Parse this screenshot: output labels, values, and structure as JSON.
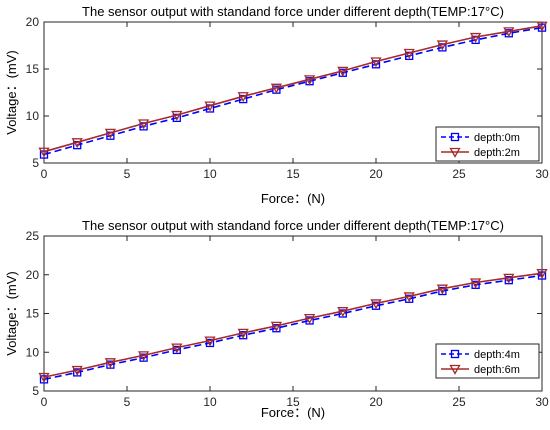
{
  "chart_data": [
    {
      "type": "line",
      "title": "The sensor output with standand force under different depth(TEMP:17°C)",
      "xlabel": "Force：(N)",
      "ylabel": "Voltage：(mV)",
      "xlim": [
        0,
        30
      ],
      "ylim": [
        5,
        20
      ],
      "xticks": [
        0,
        5,
        10,
        15,
        20,
        25,
        30
      ],
      "yticks": [
        5,
        10,
        15,
        20
      ],
      "grid": false,
      "legend_position": "bottom-right",
      "x": [
        0,
        2,
        4,
        6,
        8,
        10,
        12,
        14,
        16,
        18,
        20,
        22,
        24,
        26,
        28,
        30
      ],
      "series": [
        {
          "name": "depth:0m",
          "color": "#0000ff",
          "line_style": "dashed",
          "marker": "square",
          "values": [
            5.9,
            6.9,
            7.9,
            8.9,
            9.8,
            10.8,
            11.8,
            12.8,
            13.7,
            14.6,
            15.5,
            16.4,
            17.3,
            18.1,
            18.8,
            19.4
          ]
        },
        {
          "name": "depth:2m",
          "color": "#a52a2a",
          "line_style": "solid",
          "marker": "triangle-down",
          "values": [
            6.2,
            7.2,
            8.2,
            9.2,
            10.1,
            11.1,
            12.1,
            13.0,
            13.9,
            14.8,
            15.8,
            16.7,
            17.6,
            18.4,
            19.0,
            19.6
          ]
        }
      ]
    },
    {
      "type": "line",
      "title": "The sensor output with standand force under different depth(TEMP:17°C)",
      "xlabel": "Force：(N)",
      "ylabel": "Voltage：(mV)",
      "xlim": [
        0,
        30
      ],
      "ylim": [
        5,
        25
      ],
      "xticks": [
        0,
        5,
        10,
        15,
        20,
        25,
        30
      ],
      "yticks": [
        5,
        10,
        15,
        20,
        25
      ],
      "grid": false,
      "legend_position": "bottom-right",
      "x": [
        0,
        2,
        4,
        6,
        8,
        10,
        12,
        14,
        16,
        18,
        20,
        22,
        24,
        26,
        28,
        30
      ],
      "series": [
        {
          "name": "depth:4m",
          "color": "#0000ff",
          "line_style": "dashed",
          "marker": "square",
          "values": [
            6.5,
            7.4,
            8.4,
            9.3,
            10.3,
            11.2,
            12.2,
            13.1,
            14.1,
            15.0,
            16.0,
            16.9,
            17.9,
            18.7,
            19.3,
            19.9
          ]
        },
        {
          "name": "depth:6m",
          "color": "#a52a2a",
          "line_style": "solid",
          "marker": "triangle-down",
          "values": [
            6.8,
            7.7,
            8.7,
            9.6,
            10.6,
            11.5,
            12.5,
            13.4,
            14.4,
            15.3,
            16.3,
            17.2,
            18.2,
            19.0,
            19.6,
            20.2
          ]
        }
      ]
    }
  ]
}
